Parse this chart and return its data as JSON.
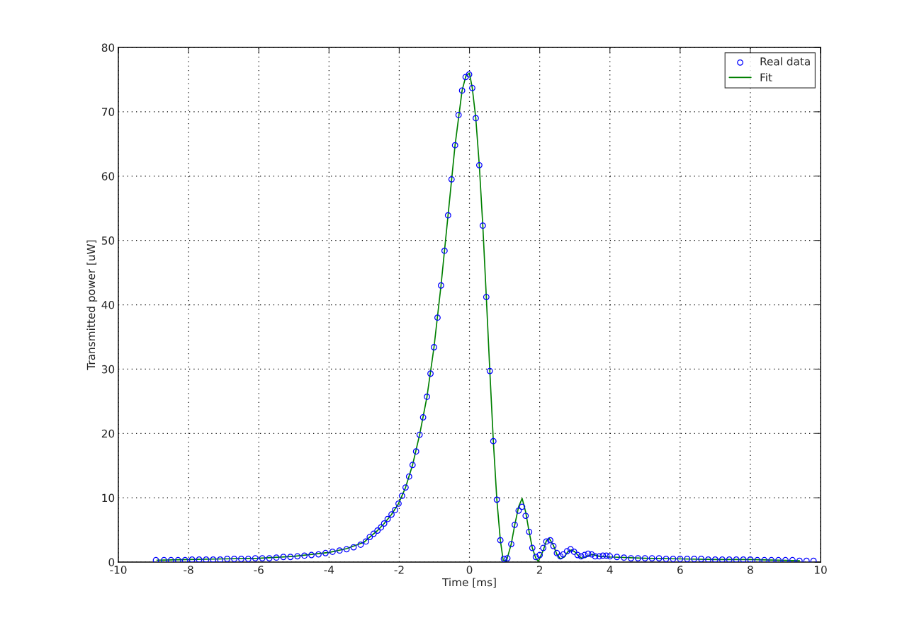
{
  "chart_data": {
    "type": "scatter",
    "xlabel": "Time [ms]",
    "ylabel": "Transmitted power [uW]",
    "xlim": [
      -10,
      10
    ],
    "ylim": [
      0,
      80
    ],
    "xticks": [
      -10,
      -8,
      -6,
      -4,
      -2,
      0,
      2,
      4,
      6,
      8,
      10
    ],
    "yticks": [
      0,
      10,
      20,
      30,
      40,
      50,
      60,
      70,
      80
    ],
    "grid": true,
    "legend": "top right",
    "series": [
      {
        "name": "Real data",
        "marker": "circle",
        "color": "#0000ff",
        "x": [
          -8.93,
          -8.7,
          -8.5,
          -8.3,
          -8.1,
          -7.9,
          -7.7,
          -7.5,
          -7.3,
          -7.1,
          -6.9,
          -6.7,
          -6.5,
          -6.3,
          -6.1,
          -5.9,
          -5.7,
          -5.5,
          -5.3,
          -5.1,
          -4.9,
          -4.7,
          -4.5,
          -4.3,
          -4.1,
          -3.9,
          -3.7,
          -3.5,
          -3.3,
          -3.1,
          -2.95,
          -2.84,
          -2.73,
          -2.62,
          -2.52,
          -2.43,
          -2.33,
          -2.22,
          -2.12,
          -2.02,
          -1.92,
          -1.82,
          -1.72,
          -1.62,
          -1.52,
          -1.42,
          -1.32,
          -1.21,
          -1.11,
          -1.01,
          -0.91,
          -0.81,
          -0.71,
          -0.61,
          -0.51,
          -0.41,
          -0.31,
          -0.21,
          -0.11,
          -0.01,
          0.08,
          0.18,
          0.28,
          0.38,
          0.48,
          0.58,
          0.68,
          0.78,
          0.88,
          0.98,
          1.08,
          1.19,
          1.29,
          1.4,
          1.5,
          1.6,
          1.7,
          1.79,
          1.89,
          2.0,
          2.1,
          2.19,
          2.3,
          2.39,
          2.49,
          2.59,
          2.67,
          2.78,
          2.88,
          2.98,
          3.08,
          3.18,
          3.28,
          3.38,
          3.48,
          3.58,
          3.7,
          3.8,
          3.9,
          4.0,
          4.2,
          4.4,
          4.6,
          4.8,
          5.0,
          5.2,
          5.4,
          5.6,
          5.8,
          6.0,
          6.2,
          6.4,
          6.6,
          6.8,
          7.0,
          7.2,
          7.4,
          7.6,
          7.8,
          8.0,
          8.2,
          8.4,
          8.6,
          8.8,
          9.0,
          9.2,
          9.4,
          9.6,
          9.8
        ],
        "values": [
          0.3,
          0.3,
          0.3,
          0.3,
          0.3,
          0.4,
          0.4,
          0.4,
          0.4,
          0.4,
          0.5,
          0.5,
          0.5,
          0.5,
          0.6,
          0.6,
          0.6,
          0.7,
          0.8,
          0.8,
          0.9,
          1.0,
          1.1,
          1.2,
          1.4,
          1.6,
          1.8,
          2.0,
          2.3,
          2.7,
          3.2,
          3.9,
          4.4,
          4.9,
          5.4,
          6.0,
          6.7,
          7.4,
          8.1,
          9.1,
          10.3,
          11.6,
          13.3,
          15.1,
          17.2,
          19.8,
          22.5,
          25.7,
          29.3,
          33.4,
          38.0,
          43.0,
          48.4,
          53.9,
          59.5,
          64.8,
          69.5,
          73.3,
          75.4,
          75.8,
          73.7,
          69.0,
          61.7,
          52.3,
          41.2,
          29.7,
          18.8,
          9.7,
          3.4,
          0.5,
          0.6,
          2.8,
          5.8,
          8.0,
          8.6,
          7.2,
          4.7,
          2.2,
          0.8,
          1.1,
          2.2,
          3.2,
          3.4,
          2.5,
          1.4,
          0.9,
          1.2,
          1.7,
          2.0,
          1.6,
          1.1,
          0.9,
          1.1,
          1.3,
          1.2,
          0.9,
          0.9,
          1.0,
          1.0,
          0.9,
          0.8,
          0.7,
          0.6,
          0.6,
          0.6,
          0.6,
          0.6,
          0.5,
          0.5,
          0.5,
          0.5,
          0.5,
          0.5,
          0.4,
          0.4,
          0.4,
          0.4,
          0.4,
          0.4,
          0.4,
          0.3,
          0.3,
          0.3,
          0.3,
          0.3,
          0.3,
          0.2,
          0.2,
          0.2
        ]
      },
      {
        "name": "Fit",
        "type": "line",
        "line_style": "solid",
        "color": "#008000",
        "x": [
          -8.9,
          -8.0,
          -7.0,
          -6.0,
          -5.0,
          -4.0,
          -3.5,
          -3.0,
          -2.84,
          -2.62,
          -2.43,
          -2.22,
          -2.02,
          -1.82,
          -1.62,
          -1.42,
          -1.21,
          -1.01,
          -0.81,
          -0.61,
          -0.41,
          -0.21,
          -0.1,
          0.0,
          0.08,
          0.18,
          0.28,
          0.38,
          0.48,
          0.58,
          0.68,
          0.78,
          0.88,
          0.96,
          1.05,
          1.19,
          1.29,
          1.4,
          1.5,
          1.6,
          1.7,
          1.79,
          1.89,
          1.96,
          2.1,
          2.19,
          2.27,
          2.39,
          2.49,
          2.59,
          2.7,
          2.8,
          2.9,
          3.0,
          3.1,
          3.2,
          3.35,
          3.5,
          3.7,
          4.0,
          5.0,
          6.0,
          7.0,
          8.0,
          9.4
        ],
        "values": [
          0.3,
          0.4,
          0.5,
          0.6,
          0.9,
          1.5,
          2.1,
          3.1,
          3.9,
          4.9,
          6.0,
          7.4,
          9.1,
          11.6,
          15.1,
          19.8,
          25.7,
          33.4,
          43.0,
          53.9,
          64.8,
          73.3,
          75.6,
          76.0,
          73.7,
          69.0,
          61.7,
          52.3,
          41.2,
          29.7,
          18.8,
          9.7,
          3.4,
          0.3,
          0.1,
          2.8,
          5.8,
          8.6,
          9.9,
          7.8,
          4.7,
          2.2,
          0.6,
          0.1,
          1.8,
          3.3,
          3.7,
          2.6,
          1.2,
          0.5,
          0.8,
          1.6,
          1.9,
          1.6,
          1.0,
          0.6,
          0.9,
          1.2,
          0.9,
          0.8,
          0.6,
          0.5,
          0.4,
          0.4,
          0.2
        ]
      }
    ]
  }
}
